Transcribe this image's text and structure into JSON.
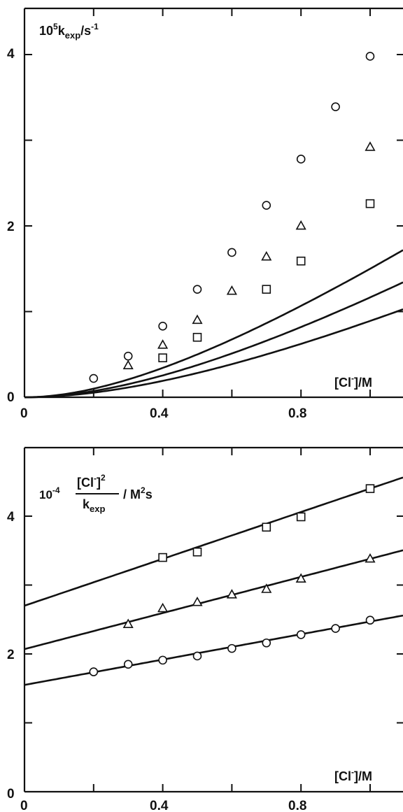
{
  "chart_data": [
    {
      "type": "line",
      "xlim": [
        0,
        1.1
      ],
      "ylim": [
        0,
        4.5
      ],
      "xticks": [
        0.0,
        0.2,
        0.4,
        0.6,
        0.8,
        1.0
      ],
      "xtick_labels": [
        "0",
        "0.4",
        "0.8"
      ],
      "xtick_label_values": [
        0.0,
        0.4,
        0.8
      ],
      "yticks": [
        0,
        1,
        2,
        3,
        4
      ],
      "ytick_labels": [
        "0",
        "2",
        "4"
      ],
      "ytick_label_values": [
        0,
        2,
        4
      ],
      "ylabel": {
        "base": "10",
        "exp": "5",
        "k": "k",
        "sub": "exp",
        "unit": "/s",
        "unit_exp": "-1"
      },
      "xlabel": {
        "pre": "[Cl",
        "sup": "-",
        "post": "]/M"
      },
      "grid": false,
      "series": [
        {
          "marker": "circle",
          "points": [
            [
              0.2,
              0.22
            ],
            [
              0.3,
              0.48
            ],
            [
              0.4,
              0.83
            ],
            [
              0.5,
              1.26
            ],
            [
              0.6,
              1.69
            ],
            [
              0.7,
              2.24
            ],
            [
              0.8,
              2.78
            ],
            [
              0.9,
              3.39
            ],
            [
              1.0,
              3.98
            ]
          ],
          "fit_a": 3.0,
          "fit_b": 1.0
        },
        {
          "marker": "triangle",
          "points": [
            [
              0.3,
              0.37
            ],
            [
              0.4,
              0.61
            ],
            [
              0.5,
              0.9
            ],
            [
              0.6,
              1.24
            ],
            [
              0.7,
              1.64
            ],
            [
              0.8,
              2.0
            ],
            [
              1.0,
              2.92
            ]
          ],
          "fit_a": 2.11,
          "fit_b": 0.81
        },
        {
          "marker": "square",
          "points": [
            [
              0.4,
              0.46
            ],
            [
              0.5,
              0.7
            ],
            [
              0.7,
              1.26
            ],
            [
              0.8,
              1.59
            ],
            [
              1.0,
              2.26
            ]
          ],
          "fit_a": 1.55,
          "fit_b": 0.74
        }
      ]
    },
    {
      "type": "line",
      "xlim": [
        0,
        1.1
      ],
      "ylim": [
        0,
        4.9
      ],
      "xticks": [
        0.0,
        0.2,
        0.4,
        0.6,
        0.8,
        1.0
      ],
      "xtick_labels": [
        "0",
        "0.4",
        "0.8"
      ],
      "xtick_label_values": [
        0.0,
        0.4,
        0.8
      ],
      "yticks": [
        0,
        1,
        2,
        3,
        4
      ],
      "ytick_labels": [
        "0",
        "2",
        "4"
      ],
      "ytick_label_values": [
        0,
        2,
        4
      ],
      "ylabel": {
        "pre": "10",
        "pre_exp": "-4",
        "num": "[Cl",
        "num_sup": "-",
        "num_post": "]",
        "num_exp": "2",
        "den": "k",
        "den_sub": "exp",
        "unit": "/ M",
        "unit_exp": "2",
        "unit_post": "s"
      },
      "xlabel": {
        "pre": "[Cl",
        "sup": "-",
        "post": "]/M"
      },
      "grid": false,
      "series": [
        {
          "marker": "square",
          "points": [
            [
              0.4,
              3.4
            ],
            [
              0.5,
              3.48
            ],
            [
              0.7,
              3.84
            ],
            [
              0.8,
              3.99
            ],
            [
              1.0,
              4.4
            ]
          ],
          "fit_intercept": 2.7,
          "fit_slope": 1.7
        },
        {
          "marker": "triangle",
          "points": [
            [
              0.3,
              2.43
            ],
            [
              0.4,
              2.66
            ],
            [
              0.5,
              2.75
            ],
            [
              0.6,
              2.86
            ],
            [
              0.7,
              2.94
            ],
            [
              0.8,
              3.09
            ],
            [
              1.0,
              3.38
            ]
          ],
          "fit_intercept": 2.07,
          "fit_slope": 1.31
        },
        {
          "marker": "circle",
          "points": [
            [
              0.2,
              1.74
            ],
            [
              0.3,
              1.85
            ],
            [
              0.4,
              1.91
            ],
            [
              0.5,
              1.97
            ],
            [
              0.6,
              2.08
            ],
            [
              0.7,
              2.16
            ],
            [
              0.8,
              2.28
            ],
            [
              0.9,
              2.37
            ],
            [
              1.0,
              2.49
            ]
          ],
          "fit_intercept": 1.55,
          "fit_slope": 0.92
        }
      ]
    }
  ]
}
